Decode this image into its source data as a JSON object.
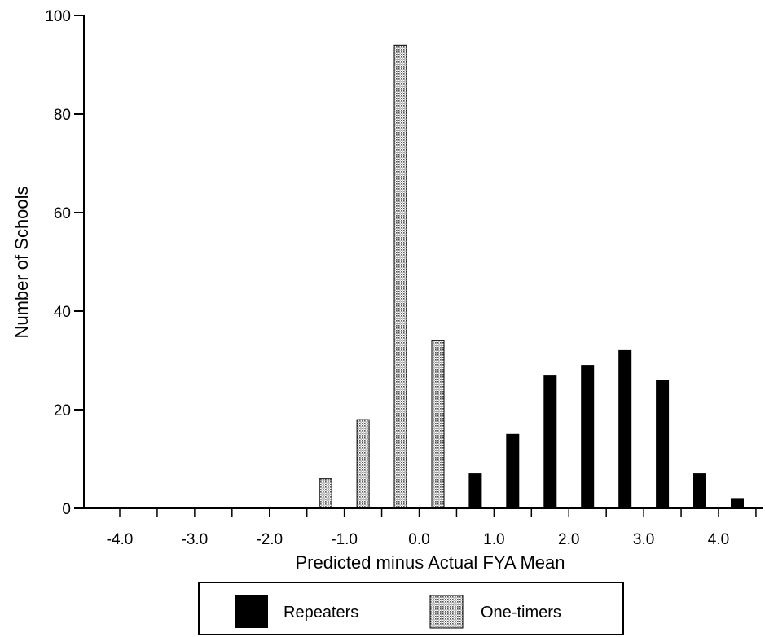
{
  "chart_data": {
    "type": "bar",
    "title": "",
    "xlabel": "Predicted minus Actual FYA Mean",
    "ylabel": "Number of Schools",
    "x_ticks": [
      "-4.0",
      "-3.0",
      "-2.0",
      "-1.0",
      "0.0",
      "1.0",
      "2.0",
      "3.0",
      "4.0"
    ],
    "y_ticks": [
      "0",
      "20",
      "40",
      "60",
      "80",
      "100"
    ],
    "xlim": [
      -4.5,
      4.5
    ],
    "ylim": [
      0,
      100
    ],
    "grid": false,
    "legend_position": "bottom-center",
    "series": [
      {
        "name": "Repeaters",
        "pattern": "solid",
        "color": "#000000",
        "x": [
          -1.25,
          -0.25,
          0.75,
          1.25,
          1.75,
          2.25,
          2.75,
          3.25,
          3.75,
          4.25
        ],
        "values": [
          1,
          2,
          7,
          15,
          27,
          29,
          32,
          26,
          7,
          2
        ]
      },
      {
        "name": "One-timers",
        "pattern": "dotted",
        "color": "#9a9a9a",
        "x": [
          -1.25,
          -0.75,
          -0.25,
          0.25
        ],
        "values": [
          6,
          18,
          94,
          34
        ]
      },
      {
        "name": "",
        "pattern": "solid",
        "color": "#000000",
        "x": [
          4.75
        ],
        "values": [
          3
        ],
        "legend": false
      }
    ]
  }
}
